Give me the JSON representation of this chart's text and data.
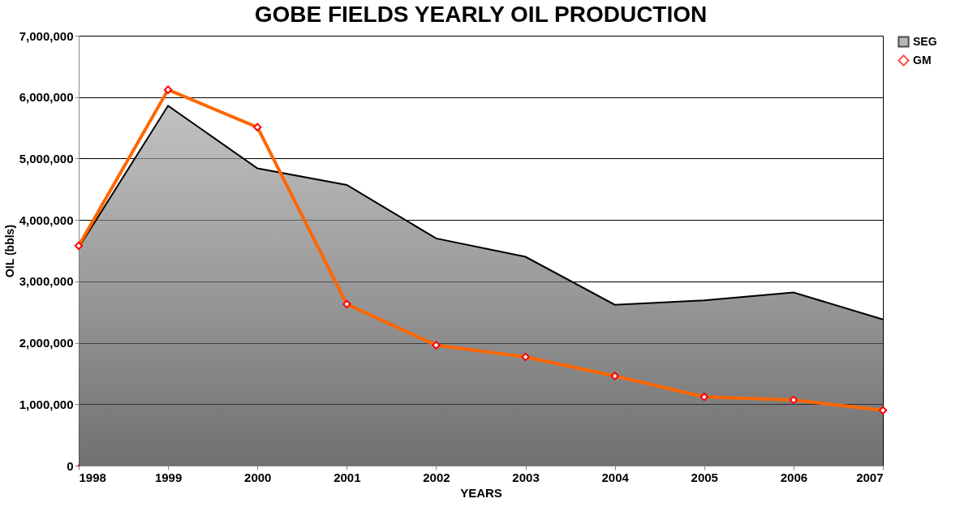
{
  "chart_data": {
    "type": "area",
    "title": "GOBE FIELDS YEARLY OIL PRODUCTION",
    "xlabel": "YEARS",
    "ylabel": "OIL (bbls)",
    "x": [
      1998,
      1999,
      2000,
      2001,
      2002,
      2003,
      2004,
      2005,
      2006,
      2007
    ],
    "series": [
      {
        "name": "SEG",
        "color": "#6e6e6e",
        "values": [
          3550000,
          5860000,
          4840000,
          4570000,
          3700000,
          3400000,
          2620000,
          2690000,
          2820000,
          2380000
        ]
      },
      {
        "name": "GM",
        "type": "line",
        "color": "#ff6600",
        "marker": "diamond",
        "values": [
          3580000,
          6120000,
          5510000,
          2630000,
          1960000,
          1770000,
          1460000,
          1120000,
          1070000,
          900000
        ]
      }
    ],
    "xlim": [
      1998,
      2007
    ],
    "xticks": [
      1998,
      1999,
      2000,
      2001,
      2002,
      2003,
      2004,
      2005,
      2006,
      2007
    ],
    "ylim": [
      0,
      7000000
    ],
    "yticks": [
      0,
      {
        "value": 1000000,
        "label": "1,000,000"
      },
      {
        "value": 2000000,
        "label": "2,000,000"
      },
      {
        "value": 3000000,
        "label": "3,000,000"
      },
      {
        "value": 4000000,
        "label": "4,000,000"
      },
      {
        "value": 5000000,
        "label": "5,000,000"
      },
      {
        "value": 6000000,
        "label": "6,000,000"
      },
      {
        "value": 7000000,
        "label": "7,000,000"
      }
    ],
    "grid": "y",
    "legend": "right"
  }
}
